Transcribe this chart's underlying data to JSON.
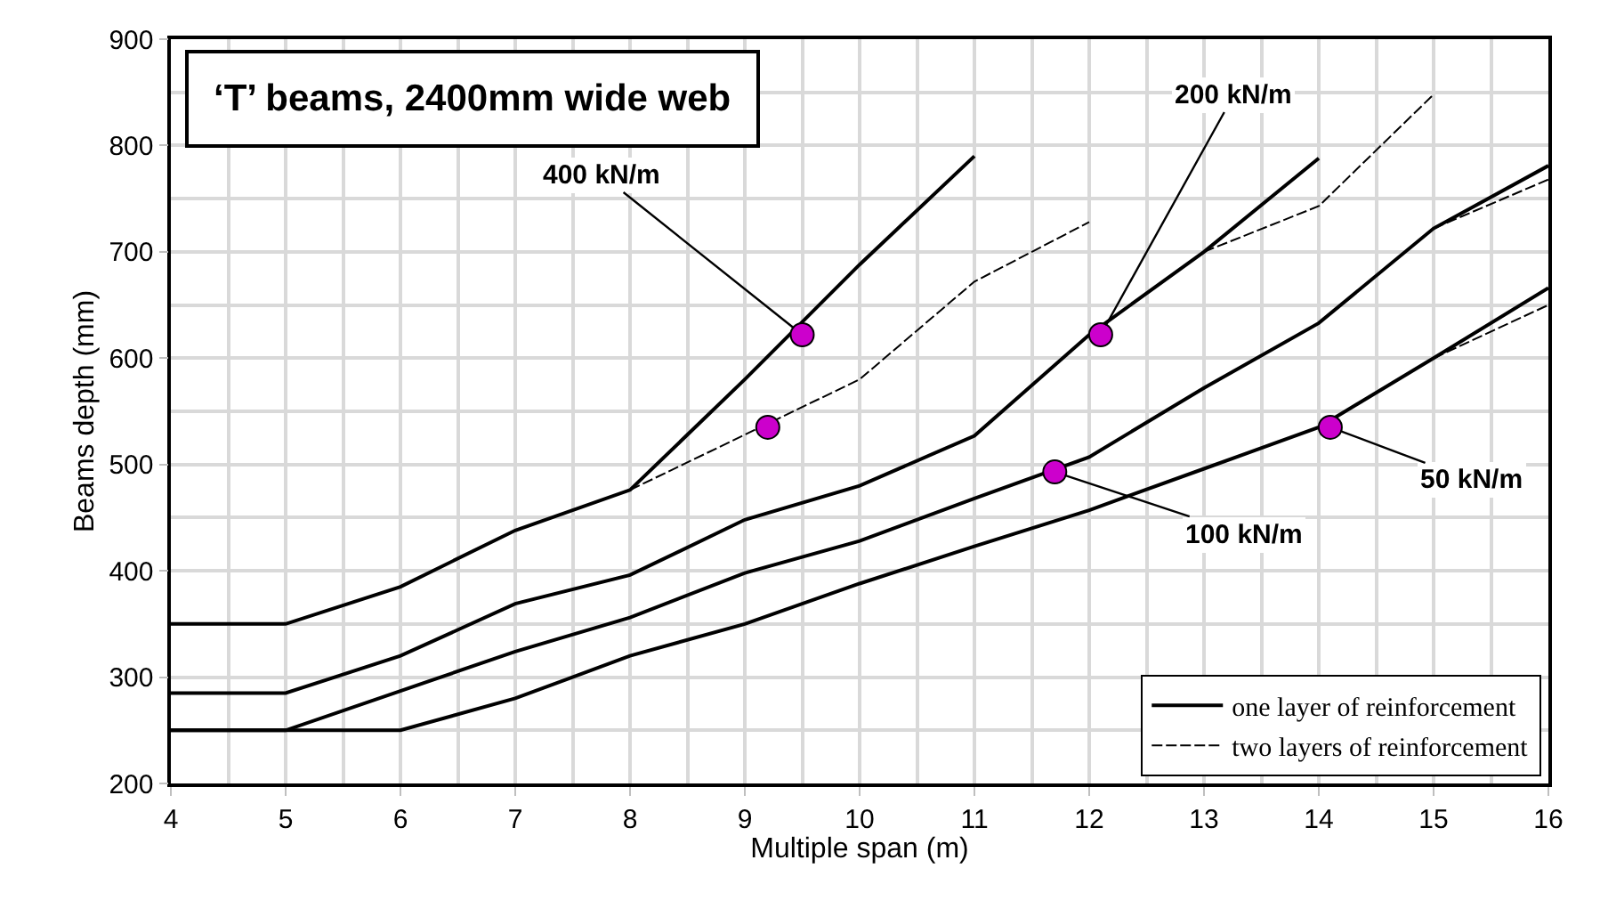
{
  "chart_data": {
    "type": "line",
    "title": "‘T’ beams, 2400mm wide web",
    "xlabel": "Multiple span (m)",
    "ylabel": "Beams depth (mm)",
    "xlim": [
      4,
      16
    ],
    "xticks": [
      4,
      5,
      6,
      7,
      8,
      9,
      10,
      11,
      12,
      13,
      14,
      15,
      16
    ],
    "ylim": [
      200,
      900
    ],
    "yticks": [
      200,
      300,
      400,
      500,
      600,
      700,
      800,
      900
    ],
    "grid": true,
    "legend": "bottom right",
    "series": [
      {
        "name": "one layer of reinforcement",
        "color": "#000000",
        "line_style": "solid",
        "x": [
          4,
          5,
          6,
          7,
          8,
          9,
          10,
          11,
          12,
          13,
          14,
          15,
          16
        ],
        "values": [
          250,
          250,
          250,
          280,
          320,
          350,
          388,
          423,
          457,
          496,
          535,
          600,
          666
        ]
      },
      {
        "color": "#000000",
        "line_style": "solid",
        "x": [
          4,
          5,
          6,
          7,
          8,
          9,
          10,
          11,
          12,
          13,
          14,
          15,
          16
        ],
        "values": [
          250,
          250,
          287,
          324,
          356,
          398,
          428,
          468,
          507,
          572,
          633,
          722,
          781
        ]
      },
      {
        "color": "#000000",
        "line_style": "solid",
        "x": [
          4,
          5,
          6,
          7,
          8,
          9,
          10,
          11,
          12,
          13,
          14
        ],
        "values": [
          285,
          285,
          320,
          369,
          396,
          448,
          480,
          527,
          622,
          700,
          788
        ]
      },
      {
        "color": "#000000",
        "line_style": "solid",
        "x": [
          4,
          5,
          6,
          7,
          8,
          9,
          10,
          11
        ],
        "values": [
          350,
          350,
          385,
          438,
          476,
          580,
          688,
          790
        ]
      },
      {
        "name": "two layers of reinforcement",
        "color": "#000000",
        "line_style": "dashed",
        "x": [
          15,
          16
        ],
        "values": [
          600,
          650
        ]
      },
      {
        "color": "#000000",
        "line_style": "dashed",
        "x": [
          15,
          16
        ],
        "values": [
          722,
          768
        ]
      },
      {
        "color": "#000000",
        "line_style": "dashed",
        "x": [
          13,
          14,
          15
        ],
        "values": [
          700,
          743,
          848
        ]
      },
      {
        "color": "#000000",
        "line_style": "dashed",
        "x": [
          8,
          9,
          10,
          11,
          12
        ],
        "values": [
          476,
          528,
          580,
          672,
          728
        ]
      },
      {
        "type": "scatter",
        "marker": "circle",
        "color": "#cc00cc",
        "x": [
          9.5,
          9.2,
          12.1,
          11.7,
          14.1
        ],
        "values": [
          622,
          535,
          622,
          493,
          535
        ]
      }
    ],
    "annotations": [
      {
        "text": "400 kN/m",
        "x": 9.5,
        "y": 622
      },
      {
        "text": "200 kN/m",
        "x": 12.1,
        "y": 622
      },
      {
        "text": "100 kN/m",
        "x": 11.7,
        "y": 493
      },
      {
        "text": "50 kN/m",
        "x": 14.1,
        "y": 535
      }
    ]
  }
}
